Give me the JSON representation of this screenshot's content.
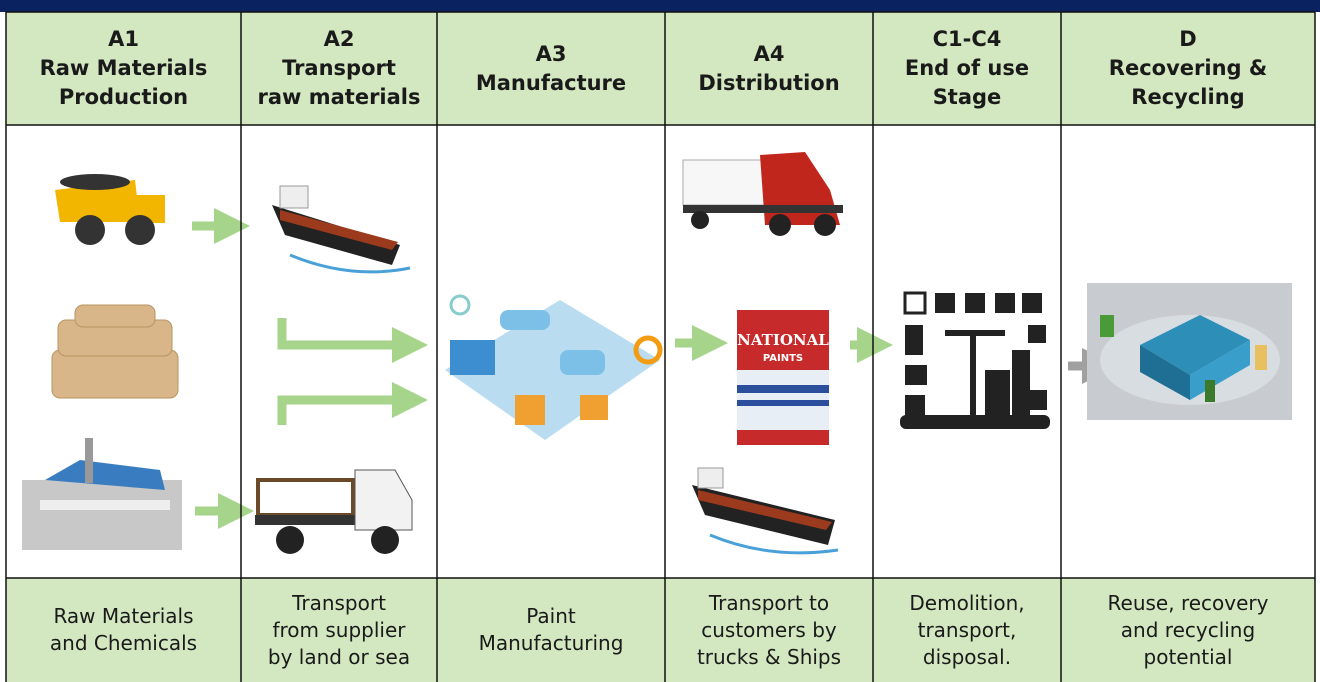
{
  "columns": [
    {
      "code": "A1",
      "title": [
        "Raw Materials",
        "Production"
      ],
      "description": [
        "Raw Materials",
        "and Chemicals"
      ]
    },
    {
      "code": "A2",
      "title": [
        "Transport",
        "raw materials"
      ],
      "description": [
        "Transport",
        "from supplier",
        "by land or sea"
      ]
    },
    {
      "code": "A3",
      "title": [
        "Manufacture"
      ],
      "description": [
        "Paint",
        "Manufacturing"
      ]
    },
    {
      "code": "A4",
      "title": [
        "Distribution"
      ],
      "description": [
        "Transport to",
        "customers by",
        "trucks & Ships"
      ]
    },
    {
      "code": "C1-C4",
      "title": [
        "End of use",
        "Stage"
      ],
      "description": [
        "Demolition,",
        "transport,",
        "disposal."
      ]
    },
    {
      "code": "D",
      "title": [
        "Recovering &",
        "Recycling"
      ],
      "description": [
        "Reuse, recovery",
        "and recycling",
        "potential"
      ]
    }
  ],
  "paint_can_label": [
    "NATIONAL",
    "PAINTS"
  ]
}
